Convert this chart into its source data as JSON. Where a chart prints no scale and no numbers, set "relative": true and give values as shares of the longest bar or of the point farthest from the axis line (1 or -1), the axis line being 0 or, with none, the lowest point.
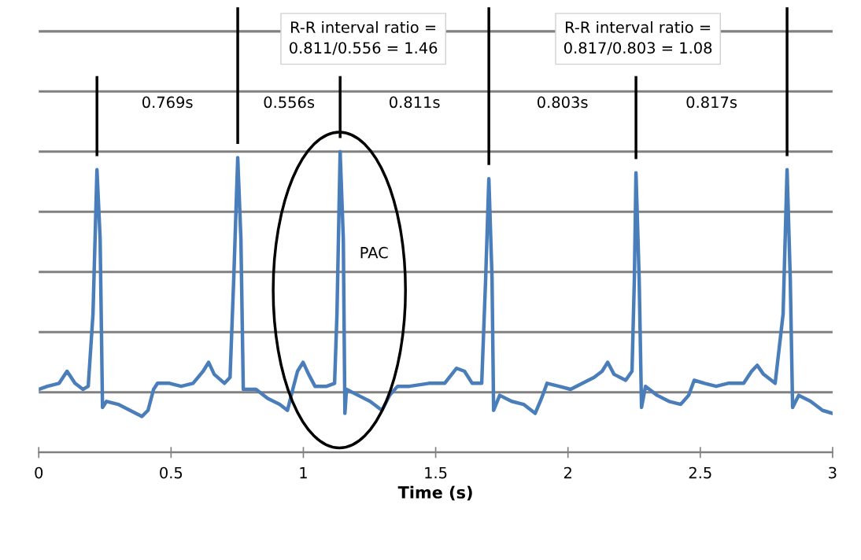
{
  "chart_data": {
    "type": "line",
    "relative": true,
    "xlabel": "Time (s)",
    "x": [
      0.0,
      0.033,
      0.077,
      0.107,
      0.137,
      0.167,
      0.187,
      0.205,
      0.22,
      0.232,
      0.241,
      0.256,
      0.3,
      0.345,
      0.39,
      0.413,
      0.434,
      0.449,
      0.494,
      0.538,
      0.583,
      0.621,
      0.642,
      0.663,
      0.702,
      0.723,
      0.737,
      0.752,
      0.764,
      0.773,
      0.821,
      0.865,
      0.91,
      0.94,
      0.96,
      0.978,
      0.999,
      1.02,
      1.044,
      1.088,
      1.118,
      1.127,
      1.139,
      1.151,
      1.157,
      1.163,
      1.207,
      1.252,
      1.297,
      1.326,
      1.356,
      1.401,
      1.475,
      1.534,
      1.579,
      1.609,
      1.638,
      1.674,
      1.689,
      1.701,
      1.713,
      1.719,
      1.742,
      1.787,
      1.832,
      1.876,
      1.9,
      1.921,
      1.966,
      2.01,
      2.055,
      2.099,
      2.129,
      2.15,
      2.174,
      2.218,
      2.242,
      2.251,
      2.257,
      2.269,
      2.278,
      2.293,
      2.337,
      2.382,
      2.426,
      2.456,
      2.477,
      2.516,
      2.56,
      2.605,
      2.664,
      2.694,
      2.715,
      2.739,
      2.783,
      2.813,
      2.828,
      2.84,
      2.849,
      2.872,
      2.917,
      2.962,
      3.0
    ],
    "series": [
      {
        "color": "#4a7ebb",
        "values": [
          0.21,
          0.22,
          0.23,
          0.27,
          0.23,
          0.21,
          0.22,
          0.46,
          0.94,
          0.71,
          0.15,
          0.17,
          0.16,
          0.14,
          0.12,
          0.14,
          0.21,
          0.23,
          0.23,
          0.22,
          0.23,
          0.27,
          0.3,
          0.26,
          0.23,
          0.25,
          0.58,
          0.98,
          0.71,
          0.21,
          0.21,
          0.18,
          0.16,
          0.14,
          0.21,
          0.27,
          0.3,
          0.26,
          0.22,
          0.22,
          0.23,
          0.46,
          1.0,
          0.71,
          0.13,
          0.21,
          0.19,
          0.17,
          0.14,
          0.19,
          0.22,
          0.22,
          0.23,
          0.23,
          0.28,
          0.27,
          0.23,
          0.23,
          0.58,
          0.91,
          0.58,
          0.14,
          0.19,
          0.17,
          0.16,
          0.13,
          0.18,
          0.23,
          0.22,
          0.21,
          0.23,
          0.25,
          0.27,
          0.3,
          0.26,
          0.24,
          0.27,
          0.58,
          0.93,
          0.58,
          0.15,
          0.22,
          0.19,
          0.17,
          0.16,
          0.19,
          0.24,
          0.23,
          0.22,
          0.23,
          0.23,
          0.27,
          0.29,
          0.26,
          0.23,
          0.46,
          0.94,
          0.58,
          0.15,
          0.19,
          0.17,
          0.14,
          0.13
        ]
      }
    ],
    "xlim": [
      0,
      3
    ],
    "xticks": [
      0,
      0.5,
      1,
      1.5,
      2,
      2.5,
      3
    ],
    "grid": "y",
    "annotations": [
      "0.769s",
      "0.556s",
      "0.811s",
      "0.803s",
      "0.817s",
      "R-R interval ratio =\n0.811/0.556 = 1.46",
      "R-R interval ratio =\n0.817/0.803 = 1.08",
      "PAC"
    ]
  }
}
